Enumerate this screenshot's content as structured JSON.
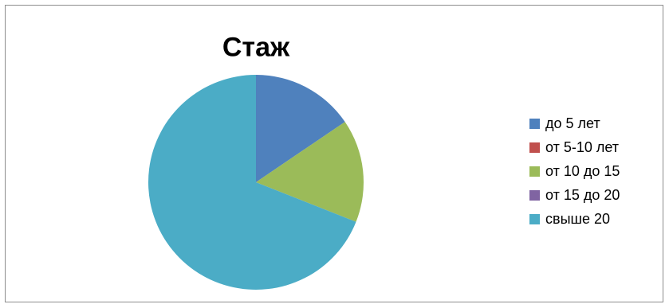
{
  "chart_data": {
    "type": "pie",
    "title": "Стаж",
    "categories": [
      "до 5 лет",
      "от 5-10 лет",
      "от 10 до 15",
      "от 15 до 20",
      "свыше 20"
    ],
    "values": [
      15.5,
      0,
      15.5,
      0,
      69
    ],
    "colors": [
      "#4f81bd",
      "#c0504d",
      "#9bbb59",
      "#8064a2",
      "#4bacc6"
    ],
    "legend_position": "right"
  }
}
